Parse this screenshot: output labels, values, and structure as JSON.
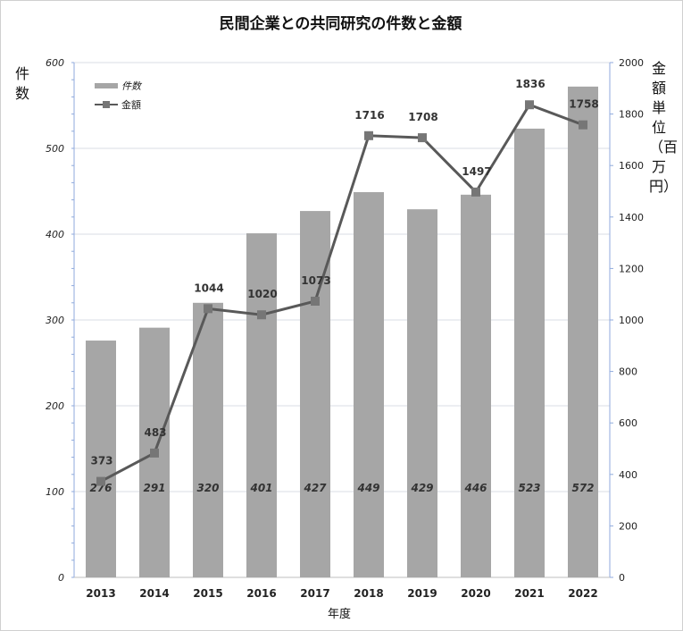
{
  "chart_data": {
    "type": "bar+line",
    "title": "民間企業との共同研究の件数と金額",
    "xlabel": "年度",
    "ylabel_left": "件数",
    "ylabel_right": "金額単位（百万円）",
    "categories": [
      "2013",
      "2014",
      "2015",
      "2016",
      "2017",
      "2018",
      "2019",
      "2020",
      "2021",
      "2022"
    ],
    "series": [
      {
        "name": "件数",
        "type": "bar",
        "axis": "left",
        "values": [
          276,
          291,
          320,
          401,
          427,
          449,
          429,
          446,
          523,
          572
        ]
      },
      {
        "name": "金額",
        "type": "line",
        "axis": "right",
        "values": [
          373,
          483,
          1044,
          1020,
          1073,
          1716,
          1708,
          1497,
          1836,
          1758
        ]
      }
    ],
    "left_axis": {
      "ylim": [
        0,
        600
      ],
      "ticks": [
        "0",
        "100",
        "200",
        "300",
        "400",
        "500",
        "600"
      ]
    },
    "right_axis": {
      "ylim": [
        0,
        2000
      ],
      "ticks": [
        "0",
        "200",
        "400",
        "600",
        "800",
        "1000",
        "1200",
        "1400",
        "1600",
        "1800",
        "2000"
      ]
    },
    "grid": true,
    "legend_position": "top-left",
    "colors": {
      "bar": "#a6a6a6",
      "line": "#595959",
      "marker": "#767676",
      "grid": "#dadde6",
      "axis": "#8faadc"
    }
  }
}
